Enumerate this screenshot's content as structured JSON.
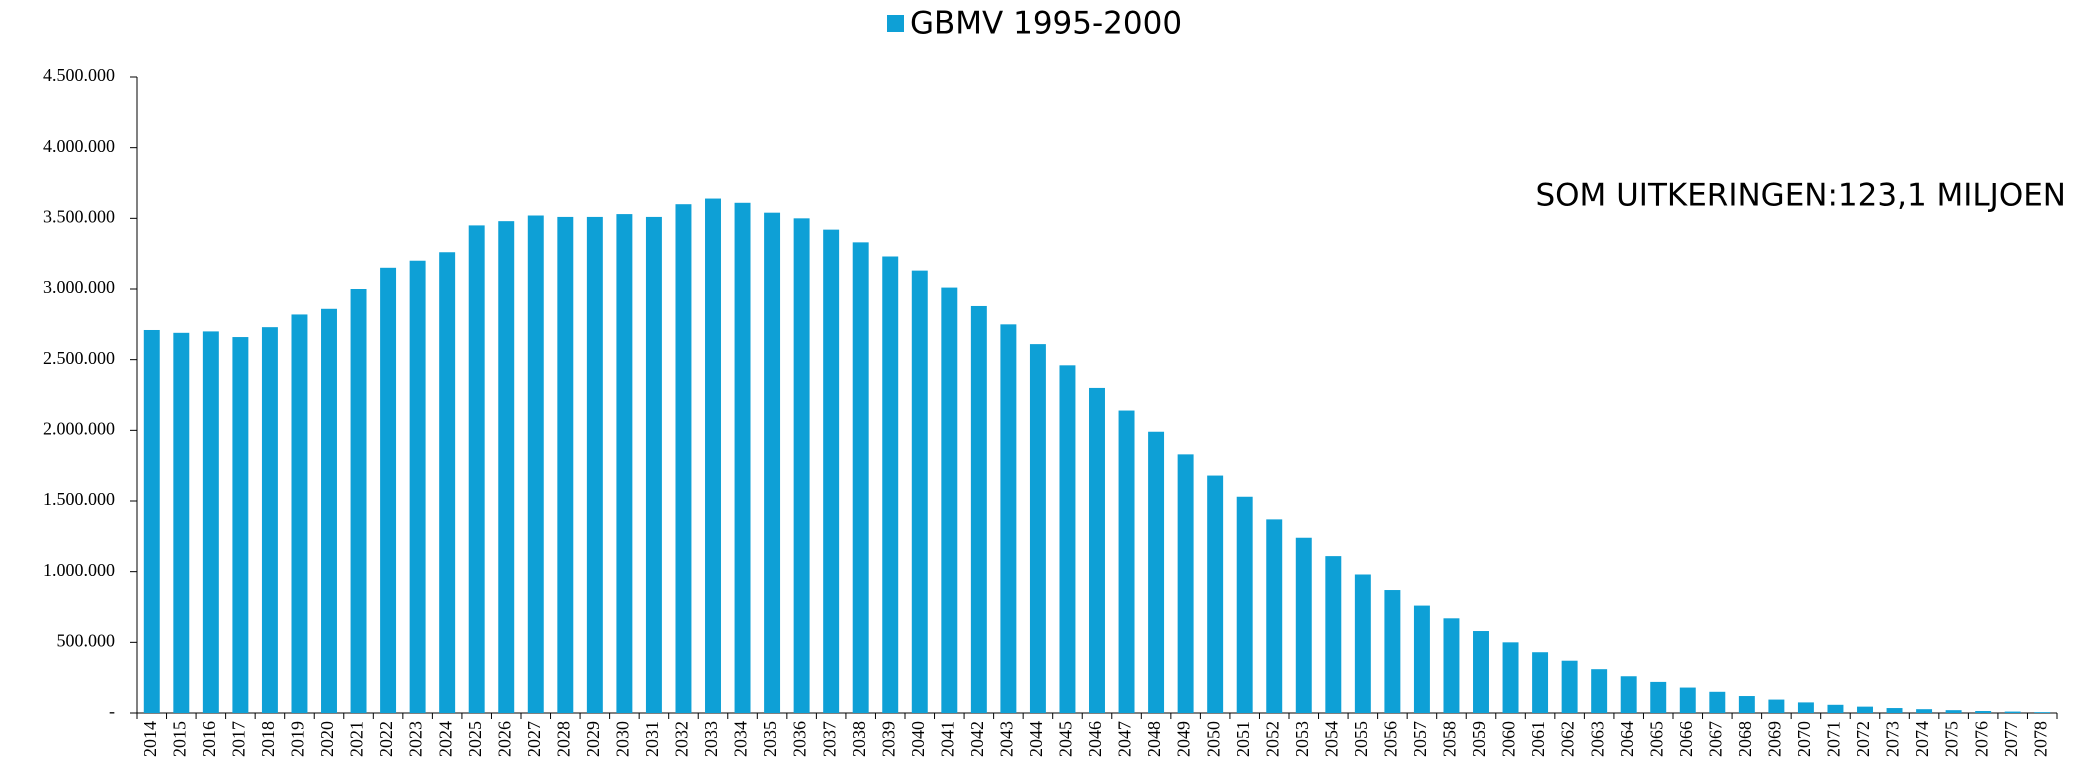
{
  "chart_data": {
    "type": "bar",
    "series": [
      {
        "name": "GBMV 1995-2000",
        "color": "#0ea0d6",
        "values": [
          2710000,
          2690000,
          2700000,
          2660000,
          2730000,
          2820000,
          2860000,
          3000000,
          3150000,
          3200000,
          3260000,
          3450000,
          3480000,
          3520000,
          3510000,
          3510000,
          3530000,
          3510000,
          3600000,
          3640000,
          3610000,
          3540000,
          3500000,
          3420000,
          3330000,
          3230000,
          3130000,
          3010000,
          2880000,
          2750000,
          2610000,
          2460000,
          2300000,
          2140000,
          1990000,
          1830000,
          1680000,
          1530000,
          1370000,
          1240000,
          1110000,
          980000,
          870000,
          760000,
          670000,
          580000,
          500000,
          430000,
          370000,
          310000,
          260000,
          220000,
          180000,
          150000,
          120000,
          95000,
          75000,
          58000,
          45000,
          35000,
          27000,
          20000,
          14000,
          10000,
          6000
        ]
      }
    ],
    "categories": [
      "2014",
      "2015",
      "2016",
      "2017",
      "2018",
      "2019",
      "2020",
      "2021",
      "2022",
      "2023",
      "2024",
      "2025",
      "2026",
      "2027",
      "2028",
      "2029",
      "2030",
      "2031",
      "2032",
      "2033",
      "2034",
      "2035",
      "2036",
      "2037",
      "2038",
      "2039",
      "2040",
      "2041",
      "2042",
      "2043",
      "2044",
      "2045",
      "2046",
      "2047",
      "2048",
      "2049",
      "2050",
      "2051",
      "2052",
      "2053",
      "2054",
      "2055",
      "2056",
      "2057",
      "2058",
      "2059",
      "2060",
      "2061",
      "2062",
      "2063",
      "2064",
      "2065",
      "2066",
      "2067",
      "2068",
      "2069",
      "2070",
      "2071",
      "2072",
      "2073",
      "2074",
      "2075",
      "2076",
      "2077",
      "2078"
    ],
    "ylim": [
      0,
      4500000
    ],
    "yticks": [
      {
        "value": 0,
        "label": "-"
      },
      {
        "value": 500000,
        "label": "500.000"
      },
      {
        "value": 1000000,
        "label": "1.000.000"
      },
      {
        "value": 1500000,
        "label": "1.500.000"
      },
      {
        "value": 2000000,
        "label": "2.000.000"
      },
      {
        "value": 2500000,
        "label": "2.500.000"
      },
      {
        "value": 3000000,
        "label": "3.000.000"
      },
      {
        "value": 3500000,
        "label": "3.500.000"
      },
      {
        "value": 4000000,
        "label": "4.000.000"
      },
      {
        "value": 4500000,
        "label": "4.500.000"
      }
    ],
    "annotation": "SOM UITKERINGEN:123,1 MILJOEN",
    "legend": "top",
    "grid": false
  }
}
